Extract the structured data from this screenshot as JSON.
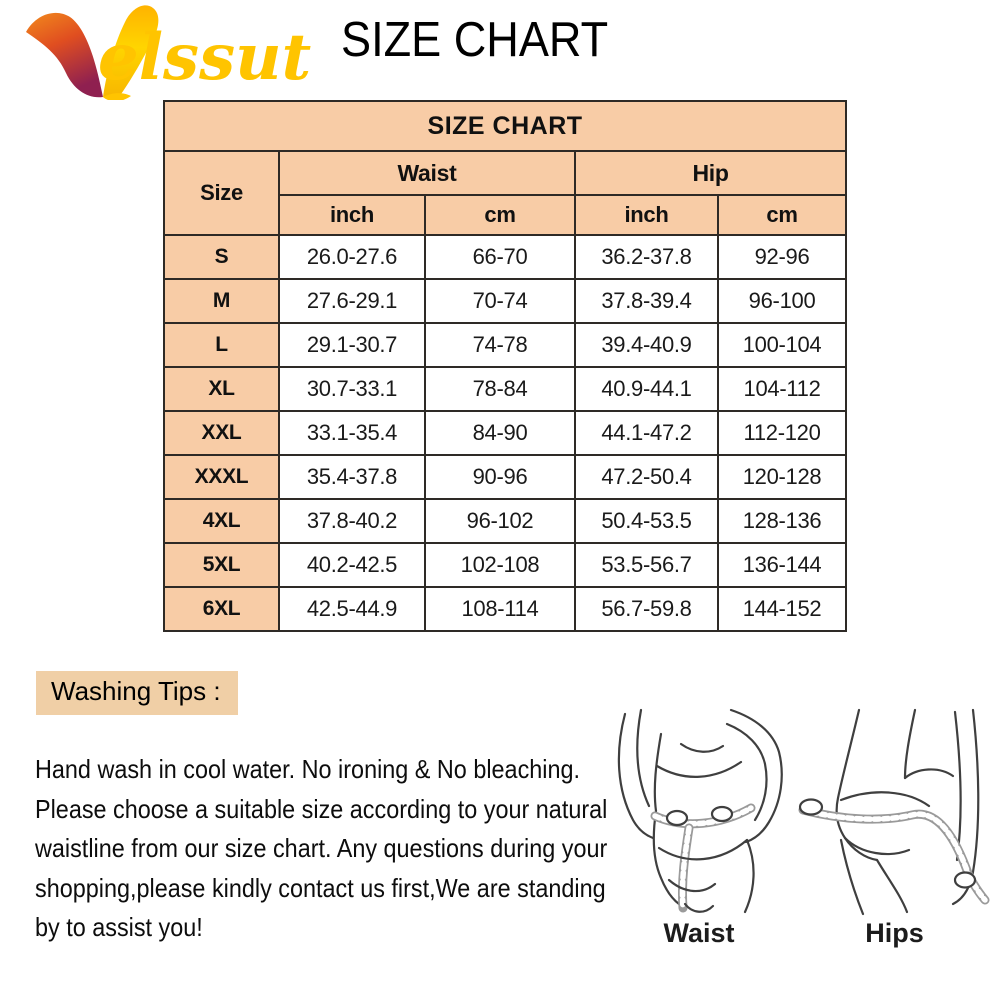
{
  "brand": {
    "logo_v": "V",
    "logo_text": "elssut"
  },
  "page_title": "SIZE CHART",
  "size_table": {
    "title": "SIZE CHART",
    "col_size": "Size",
    "col_waist": "Waist",
    "col_hip": "Hip",
    "unit_inch": "inch",
    "unit_cm": "cm",
    "rows": [
      {
        "size": "S",
        "waist_inch": "26.0-27.6",
        "waist_cm": "66-70",
        "hip_inch": "36.2-37.8",
        "hip_cm": "92-96"
      },
      {
        "size": "M",
        "waist_inch": "27.6-29.1",
        "waist_cm": "70-74",
        "hip_inch": "37.8-39.4",
        "hip_cm": "96-100"
      },
      {
        "size": "L",
        "waist_inch": "29.1-30.7",
        "waist_cm": "74-78",
        "hip_inch": "39.4-40.9",
        "hip_cm": "100-104"
      },
      {
        "size": "XL",
        "waist_inch": "30.7-33.1",
        "waist_cm": "78-84",
        "hip_inch": "40.9-44.1",
        "hip_cm": "104-112"
      },
      {
        "size": "XXL",
        "waist_inch": "33.1-35.4",
        "waist_cm": "84-90",
        "hip_inch": "44.1-47.2",
        "hip_cm": "112-120"
      },
      {
        "size": "XXXL",
        "waist_inch": "35.4-37.8",
        "waist_cm": "90-96",
        "hip_inch": "47.2-50.4",
        "hip_cm": "120-128"
      },
      {
        "size": "4XL",
        "waist_inch": "37.8-40.2",
        "waist_cm": "96-102",
        "hip_inch": "50.4-53.5",
        "hip_cm": "128-136"
      },
      {
        "size": "5XL",
        "waist_inch": "40.2-42.5",
        "waist_cm": "102-108",
        "hip_inch": "53.5-56.7",
        "hip_cm": "136-144"
      },
      {
        "size": "6XL",
        "waist_inch": "42.5-44.9",
        "waist_cm": "108-114",
        "hip_inch": "56.7-59.8",
        "hip_cm": "144-152"
      }
    ]
  },
  "washing_tips": {
    "heading": "Washing Tips :",
    "lines": [
      "Hand wash in cool water. No ironing & No bleaching.",
      "Please choose a suitable size according to your natural",
      "waistline from our size chart. Any questions during your",
      "shopping,please kindly contact us first,We are standing",
      "by to assist you!"
    ]
  },
  "figures": {
    "waist_label": "Waist",
    "hips_label": "Hips"
  },
  "colors": {
    "table_header_peach": "#F8CCA6",
    "tips_highlight": "#F0CFA6",
    "logo_gold": "#FFC400",
    "table_border": "#2e2a26"
  }
}
